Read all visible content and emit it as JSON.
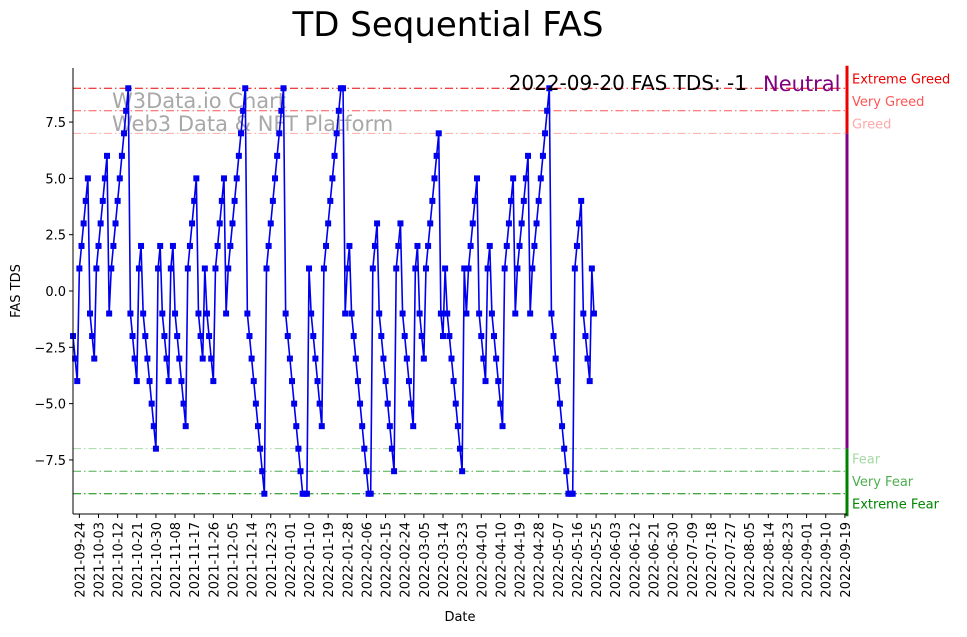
{
  "chart_data": {
    "type": "line",
    "title": "TD Sequential FAS",
    "xlabel": "Date",
    "ylabel": "FAS TDS",
    "ylim": [
      -9.9,
      9.9
    ],
    "yticks": [
      -7.5,
      -5.0,
      -2.5,
      0.0,
      2.5,
      5.0,
      7.5
    ],
    "ytick_labels": [
      "−7.5",
      "−5.0",
      "−2.5",
      "0.0",
      "2.5",
      "5.0",
      "7.5"
    ],
    "start_date": "2021-09-21",
    "end_date": "2022-09-20",
    "xticks": [
      "2021-09-24",
      "2021-10-03",
      "2021-10-12",
      "2021-10-21",
      "2021-10-30",
      "2021-11-08",
      "2021-11-17",
      "2021-11-26",
      "2021-12-05",
      "2021-12-14",
      "2021-12-23",
      "2022-01-01",
      "2022-01-10",
      "2022-01-19",
      "2022-01-28",
      "2022-02-06",
      "2022-02-15",
      "2022-02-24",
      "2022-03-05",
      "2022-03-14",
      "2022-03-23",
      "2022-04-01",
      "2022-04-10",
      "2022-04-19",
      "2022-04-28",
      "2022-05-07",
      "2022-05-16",
      "2022-05-25",
      "2022-06-03",
      "2022-06-12",
      "2022-06-21",
      "2022-06-30",
      "2022-07-09",
      "2022-07-18",
      "2022-07-27",
      "2022-08-05",
      "2022-08-14",
      "2022-08-23",
      "2022-09-01",
      "2022-09-10",
      "2022-09-19"
    ],
    "series": [
      {
        "name": "FAS TDS",
        "color": "#0000ee",
        "marker": "square",
        "values": [
          -2,
          -3,
          -4,
          1,
          2,
          3,
          4,
          5,
          -1,
          -2,
          -3,
          1,
          2,
          3,
          4,
          5,
          6,
          -1,
          1,
          2,
          3,
          4,
          5,
          6,
          7,
          8,
          9,
          -1,
          -2,
          -3,
          -4,
          1,
          2,
          -1,
          -2,
          -3,
          -4,
          -5,
          -6,
          -7,
          1,
          2,
          -1,
          -2,
          -3,
          -4,
          1,
          2,
          -1,
          -2,
          -3,
          -4,
          -5,
          -6,
          1,
          2,
          3,
          4,
          5,
          -1,
          -2,
          -3,
          1,
          -1,
          -2,
          -3,
          -4,
          1,
          2,
          3,
          4,
          5,
          -1,
          1,
          2,
          3,
          4,
          5,
          6,
          7,
          8,
          9,
          -1,
          -2,
          -3,
          -4,
          -5,
          -6,
          -7,
          -8,
          -9,
          1,
          2,
          3,
          4,
          5,
          6,
          7,
          8,
          9,
          -1,
          -2,
          -3,
          -4,
          -5,
          -6,
          -7,
          -8,
          -9,
          -9,
          -9,
          1,
          -1,
          -2,
          -3,
          -4,
          -5,
          -6,
          1,
          2,
          3,
          4,
          5,
          6,
          7,
          8,
          9,
          9,
          -1,
          1,
          2,
          -1,
          -2,
          -3,
          -4,
          -5,
          -6,
          -7,
          -8,
          -9,
          -9,
          1,
          2,
          3,
          -1,
          -2,
          -3,
          -4,
          -5,
          -6,
          -7,
          -8,
          1,
          2,
          3,
          -1,
          -2,
          -3,
          -4,
          -5,
          -6,
          1,
          2,
          -1,
          -2,
          -3,
          1,
          2,
          3,
          4,
          5,
          6,
          7,
          -1,
          -2,
          1,
          -1,
          -2,
          -3,
          -4,
          -5,
          -6,
          -7,
          -8,
          1,
          -1,
          1,
          2,
          3,
          4,
          5,
          -1,
          -2,
          -3,
          -4,
          1,
          2,
          -1,
          -2,
          -3,
          -4,
          -5,
          -6,
          1,
          2,
          3,
          4,
          5,
          -1,
          1,
          2,
          3,
          4,
          5,
          6,
          -1,
          1,
          2,
          3,
          4,
          5,
          6,
          7,
          8,
          9,
          -1,
          -2,
          -3,
          -4,
          -5,
          -6,
          -7,
          -8,
          -9,
          -9,
          -9,
          1,
          2,
          3,
          4,
          -1,
          -2,
          -3,
          -4,
          1,
          -1
        ]
      }
    ],
    "reference_lines": [
      {
        "y": 9,
        "label": "Extreme Greed",
        "color": "#ee0000",
        "style": "dashdot"
      },
      {
        "y": 8,
        "label": "Very Greed",
        "color": "#ff5555",
        "style": "dashdot"
      },
      {
        "y": 7,
        "label": "Greed",
        "color": "#ffaaaa",
        "style": "dashdot"
      },
      {
        "y": -7,
        "label": "Fear",
        "color": "#a6d8a6",
        "style": "dashdot"
      },
      {
        "y": -8,
        "label": "Very Fear",
        "color": "#4fae4f",
        "style": "dashdot"
      },
      {
        "y": -9,
        "label": "Extreme Fear",
        "color": "#008800",
        "style": "dashdot"
      }
    ],
    "sentiment_bar": [
      {
        "from": 7,
        "to": 10,
        "color": "#ee0000"
      },
      {
        "from": -7,
        "to": 7,
        "color": "#800080"
      },
      {
        "from": -10,
        "to": -7,
        "color": "#008000"
      }
    ],
    "annotation": {
      "text": "2022-09-20 FAS TDS: -1",
      "status": "Neutral",
      "status_color": "#800080"
    },
    "watermark": [
      "W3Data.io Chart",
      "Web3 Data & NFT Platform"
    ]
  }
}
